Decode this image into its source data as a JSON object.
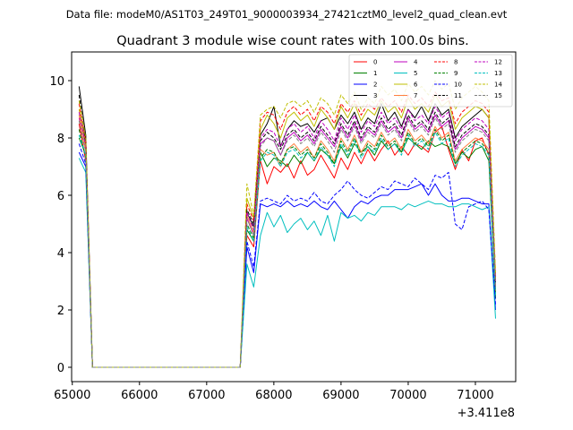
{
  "header_text": "Data file: modeM0/AS1T03_249T01_9000003934_27421cztM0_level2_quad_clean.evt",
  "chart_data": {
    "type": "line",
    "title": "Quadrant 3 module wise count rates with 100.0s bins.",
    "xlabel": "",
    "ylabel": "",
    "x_offset_text": "+3.411e8",
    "xlim": [
      64990,
      71600
    ],
    "ylim": [
      -0.5,
      11
    ],
    "x_ticks": [
      65000,
      66000,
      67000,
      68000,
      69000,
      70000,
      71000
    ],
    "y_ticks": [
      0,
      2,
      4,
      6,
      8,
      10
    ],
    "legend_position": "top-right",
    "x": [
      65100,
      65200,
      65300,
      65400,
      65500,
      65600,
      65700,
      65800,
      65900,
      66000,
      66100,
      66200,
      66300,
      66400,
      66500,
      66600,
      66700,
      66800,
      66900,
      67000,
      67100,
      67200,
      67300,
      67400,
      67500,
      67600,
      67700,
      67800,
      67900,
      68000,
      68100,
      68200,
      68300,
      68400,
      68500,
      68600,
      68700,
      68800,
      68900,
      69000,
      69100,
      69200,
      69300,
      69400,
      69500,
      69600,
      69700,
      69800,
      69900,
      70000,
      70100,
      70200,
      70300,
      70400,
      70500,
      70600,
      70700,
      70800,
      70900,
      71000,
      71100,
      71200,
      71300
    ],
    "series": [
      {
        "name": "0",
        "color": "#ff0000",
        "dash": false,
        "values": [
          8.5,
          7.2,
          0,
          0,
          0,
          0,
          0,
          0,
          0,
          0,
          0,
          0,
          0,
          0,
          0,
          0,
          0,
          0,
          0,
          0,
          0,
          0,
          0,
          0,
          0,
          4.6,
          4.2,
          7.2,
          6.4,
          7.0,
          6.8,
          7.1,
          6.6,
          7.2,
          6.7,
          6.9,
          7.4,
          7.0,
          6.6,
          7.3,
          6.9,
          7.5,
          7.1,
          7.6,
          7.2,
          7.6,
          7.9,
          7.4,
          7.7,
          7.4,
          7.8,
          7.7,
          7.5,
          8.2,
          8.4,
          7.6,
          6.9,
          7.6,
          7.2,
          7.9,
          8.0,
          7.4,
          2.5
        ]
      },
      {
        "name": "1",
        "color": "#008000",
        "dash": false,
        "values": [
          8.0,
          7.4,
          0,
          0,
          0,
          0,
          0,
          0,
          0,
          0,
          0,
          0,
          0,
          0,
          0,
          0,
          0,
          0,
          0,
          0,
          0,
          0,
          0,
          0,
          0,
          4.8,
          4.4,
          7.5,
          7.0,
          7.3,
          7.2,
          7.0,
          7.4,
          7.1,
          7.5,
          7.2,
          7.6,
          7.4,
          7.1,
          7.7,
          7.3,
          7.8,
          7.5,
          7.7,
          7.4,
          7.9,
          7.6,
          7.8,
          7.5,
          8.0,
          7.8,
          7.6,
          7.9,
          7.7,
          7.8,
          7.7,
          7.1,
          7.5,
          7.3,
          7.6,
          7.7,
          7.2,
          2.4
        ]
      },
      {
        "name": "2",
        "color": "#0000ff",
        "dash": false,
        "values": [
          7.5,
          7.0,
          0,
          0,
          0,
          0,
          0,
          0,
          0,
          0,
          0,
          0,
          0,
          0,
          0,
          0,
          0,
          0,
          0,
          0,
          0,
          0,
          0,
          0,
          0,
          4.2,
          3.3,
          5.7,
          5.6,
          5.7,
          5.6,
          5.8,
          5.6,
          5.7,
          5.6,
          5.8,
          5.6,
          5.5,
          5.8,
          5.5,
          5.2,
          5.6,
          5.8,
          5.7,
          5.9,
          6.0,
          6.0,
          6.2,
          6.2,
          6.2,
          6.3,
          6.4,
          6.0,
          6.4,
          6.0,
          5.8,
          5.8,
          5.9,
          5.9,
          5.8,
          5.7,
          5.7,
          2.0
        ]
      },
      {
        "name": "3",
        "color": "#000000",
        "dash": false,
        "values": [
          9.8,
          8.1,
          0,
          0,
          0,
          0,
          0,
          0,
          0,
          0,
          0,
          0,
          0,
          0,
          0,
          0,
          0,
          0,
          0,
          0,
          0,
          0,
          0,
          0,
          0,
          5.4,
          4.9,
          8.1,
          8.5,
          9.1,
          7.7,
          8.3,
          8.6,
          8.4,
          8.5,
          8.2,
          8.6,
          8.7,
          8.3,
          8.8,
          8.5,
          8.9,
          8.3,
          8.7,
          8.5,
          9.2,
          8.6,
          8.9,
          8.4,
          9.0,
          8.7,
          9.1,
          8.6,
          9.2,
          8.8,
          9.0,
          8.0,
          8.4,
          8.6,
          8.8,
          9.0,
          8.7,
          3.0
        ]
      },
      {
        "name": "4",
        "color": "#bf00bf",
        "dash": false,
        "values": [
          8.7,
          7.6,
          0,
          0,
          0,
          0,
          0,
          0,
          0,
          0,
          0,
          0,
          0,
          0,
          0,
          0,
          0,
          0,
          0,
          0,
          0,
          0,
          0,
          0,
          0,
          5.2,
          4.6,
          7.8,
          8.0,
          7.9,
          7.4,
          8.0,
          8.2,
          7.9,
          8.1,
          7.8,
          8.3,
          8.0,
          7.7,
          8.4,
          8.0,
          8.5,
          7.9,
          8.3,
          8.1,
          8.6,
          8.2,
          8.4,
          8.0,
          8.7,
          8.3,
          8.5,
          8.2,
          8.8,
          8.4,
          8.6,
          7.6,
          8.0,
          8.2,
          8.4,
          8.3,
          8.0,
          2.8
        ]
      },
      {
        "name": "5",
        "color": "#00bfbf",
        "dash": false,
        "values": [
          7.3,
          6.8,
          0,
          0,
          0,
          0,
          0,
          0,
          0,
          0,
          0,
          0,
          0,
          0,
          0,
          0,
          0,
          0,
          0,
          0,
          0,
          0,
          0,
          0,
          0,
          3.6,
          2.8,
          4.6,
          5.4,
          4.9,
          5.3,
          4.7,
          5.0,
          5.2,
          4.8,
          5.1,
          4.6,
          5.3,
          4.4,
          5.4,
          5.2,
          5.3,
          5.1,
          5.4,
          5.3,
          5.6,
          5.6,
          5.6,
          5.5,
          5.7,
          5.6,
          5.7,
          5.8,
          5.7,
          5.7,
          5.6,
          5.6,
          5.7,
          5.7,
          5.6,
          5.5,
          5.6,
          1.7
        ]
      },
      {
        "name": "6",
        "color": "#bfbf00",
        "dash": false,
        "values": [
          9.0,
          7.7,
          0,
          0,
          0,
          0,
          0,
          0,
          0,
          0,
          0,
          0,
          0,
          0,
          0,
          0,
          0,
          0,
          0,
          0,
          0,
          0,
          0,
          0,
          0,
          5.9,
          5.2,
          8.3,
          8.8,
          8.5,
          8.0,
          8.7,
          8.9,
          8.6,
          8.8,
          8.4,
          9.0,
          8.7,
          8.3,
          9.1,
          8.7,
          9.2,
          8.6,
          9.0,
          8.8,
          9.3,
          8.9,
          9.1,
          8.7,
          9.4,
          9.0,
          9.2,
          8.9,
          9.5,
          9.1,
          9.3,
          8.3,
          8.7,
          8.9,
          9.1,
          9.0,
          8.7,
          3.1
        ]
      },
      {
        "name": "7",
        "color": "#ff8040",
        "dash": false,
        "values": [
          8.8,
          7.5,
          0,
          0,
          0,
          0,
          0,
          0,
          0,
          0,
          0,
          0,
          0,
          0,
          0,
          0,
          0,
          0,
          0,
          0,
          0,
          0,
          0,
          0,
          0,
          5.3,
          4.7,
          7.6,
          7.4,
          7.5,
          7.0,
          7.6,
          7.8,
          7.5,
          7.7,
          7.3,
          7.9,
          7.6,
          7.2,
          8.0,
          7.6,
          8.1,
          7.5,
          7.9,
          7.7,
          8.2,
          7.8,
          8.0,
          7.6,
          8.3,
          7.9,
          8.1,
          7.8,
          8.4,
          8.0,
          8.2,
          7.2,
          7.6,
          7.8,
          8.0,
          7.9,
          7.6,
          2.7
        ]
      },
      {
        "name": "8",
        "color": "#ff0000",
        "dash": true,
        "values": [
          9.2,
          7.9,
          0,
          0,
          0,
          0,
          0,
          0,
          0,
          0,
          0,
          0,
          0,
          0,
          0,
          0,
          0,
          0,
          0,
          0,
          0,
          0,
          0,
          0,
          0,
          5.7,
          5.1,
          8.6,
          8.9,
          8.8,
          8.3,
          8.9,
          9.1,
          8.8,
          9.0,
          8.6,
          9.1,
          8.9,
          8.5,
          9.2,
          8.9,
          9.3,
          8.8,
          9.2,
          9.0,
          9.4,
          9.1,
          9.3,
          8.9,
          9.5,
          9.2,
          9.4,
          9.1,
          9.6,
          9.3,
          9.4,
          8.5,
          8.9,
          9.1,
          9.3,
          9.2,
          8.9,
          3.2
        ]
      },
      {
        "name": "9",
        "color": "#008000",
        "dash": true,
        "values": [
          8.3,
          7.3,
          0,
          0,
          0,
          0,
          0,
          0,
          0,
          0,
          0,
          0,
          0,
          0,
          0,
          0,
          0,
          0,
          0,
          0,
          0,
          0,
          0,
          0,
          0,
          5.0,
          4.5,
          7.3,
          7.6,
          7.5,
          7.1,
          7.6,
          7.7,
          7.4,
          7.6,
          7.3,
          7.8,
          7.5,
          7.1,
          7.9,
          7.5,
          8.0,
          7.4,
          7.8,
          7.6,
          8.1,
          7.7,
          7.9,
          7.5,
          8.2,
          7.8,
          8.0,
          7.7,
          8.3,
          7.9,
          8.1,
          7.1,
          7.5,
          7.7,
          7.9,
          7.8,
          7.5,
          2.6
        ]
      },
      {
        "name": "10",
        "color": "#0000ff",
        "dash": true,
        "values": [
          7.8,
          7.1,
          0,
          0,
          0,
          0,
          0,
          0,
          0,
          0,
          0,
          0,
          0,
          0,
          0,
          0,
          0,
          0,
          0,
          0,
          0,
          0,
          0,
          0,
          0,
          4.4,
          3.5,
          5.8,
          5.9,
          5.8,
          5.7,
          6.0,
          5.8,
          5.9,
          5.8,
          6.1,
          5.8,
          5.7,
          6.0,
          6.2,
          6.5,
          6.2,
          6.0,
          5.9,
          6.1,
          6.3,
          6.2,
          6.5,
          6.4,
          6.3,
          6.6,
          6.4,
          6.2,
          6.7,
          6.6,
          6.8,
          5.0,
          4.8,
          5.6,
          5.7,
          5.8,
          5.5,
          2.2
        ]
      },
      {
        "name": "11",
        "color": "#000000",
        "dash": true,
        "values": [
          9.5,
          7.8,
          0,
          0,
          0,
          0,
          0,
          0,
          0,
          0,
          0,
          0,
          0,
          0,
          0,
          0,
          0,
          0,
          0,
          0,
          0,
          0,
          0,
          0,
          0,
          5.5,
          5.0,
          7.9,
          8.2,
          8.0,
          7.6,
          8.1,
          8.3,
          8.0,
          8.2,
          7.9,
          8.4,
          8.1,
          7.8,
          8.5,
          8.1,
          8.6,
          8.0,
          8.4,
          8.2,
          8.7,
          8.3,
          8.5,
          8.1,
          8.8,
          8.4,
          8.6,
          8.3,
          8.9,
          8.5,
          8.7,
          7.7,
          8.1,
          8.3,
          8.5,
          8.4,
          8.1,
          2.9
        ]
      },
      {
        "name": "12",
        "color": "#bf00bf",
        "dash": true,
        "values": [
          8.9,
          7.7,
          0,
          0,
          0,
          0,
          0,
          0,
          0,
          0,
          0,
          0,
          0,
          0,
          0,
          0,
          0,
          0,
          0,
          0,
          0,
          0,
          0,
          0,
          0,
          5.4,
          4.8,
          8.0,
          8.3,
          8.2,
          7.7,
          8.3,
          8.5,
          8.2,
          8.4,
          8.0,
          8.6,
          8.3,
          7.9,
          8.7,
          8.3,
          8.8,
          8.2,
          8.6,
          8.4,
          8.9,
          8.5,
          8.7,
          8.3,
          9.0,
          8.6,
          8.8,
          8.5,
          9.1,
          8.7,
          8.9,
          7.9,
          8.3,
          8.5,
          8.7,
          8.6,
          8.3,
          3.0
        ]
      },
      {
        "name": "13",
        "color": "#00bfbf",
        "dash": true,
        "values": [
          8.1,
          7.4,
          0,
          0,
          0,
          0,
          0,
          0,
          0,
          0,
          0,
          0,
          0,
          0,
          0,
          0,
          0,
          0,
          0,
          0,
          0,
          0,
          0,
          0,
          0,
          4.9,
          4.4,
          7.2,
          7.5,
          7.4,
          7.0,
          7.5,
          7.6,
          7.3,
          7.5,
          7.2,
          7.7,
          7.4,
          7.0,
          7.8,
          7.4,
          7.9,
          7.3,
          7.7,
          7.5,
          8.0,
          7.6,
          7.8,
          7.4,
          8.1,
          7.7,
          7.9,
          7.6,
          8.2,
          7.8,
          8.0,
          7.0,
          7.4,
          7.6,
          7.8,
          7.7,
          7.4,
          2.5
        ]
      },
      {
        "name": "14",
        "color": "#bfbf00",
        "dash": true,
        "values": [
          9.3,
          8.0,
          0,
          0,
          0,
          0,
          0,
          0,
          0,
          0,
          0,
          0,
          0,
          0,
          0,
          0,
          0,
          0,
          0,
          0,
          0,
          0,
          0,
          0,
          0,
          6.4,
          5.3,
          8.8,
          9.0,
          9.1,
          8.7,
          9.2,
          9.3,
          9.1,
          9.3,
          8.9,
          9.4,
          9.2,
          8.8,
          9.5,
          9.2,
          9.6,
          9.0,
          9.4,
          9.2,
          9.8,
          9.5,
          9.7,
          9.3,
          9.9,
          9.6,
          9.8,
          9.5,
          10.0,
          9.7,
          9.9,
          9.0,
          9.4,
          9.6,
          9.8,
          9.6,
          9.3,
          3.3
        ]
      },
      {
        "name": "15",
        "color": "#808080",
        "dash": true,
        "values": [
          8.6,
          7.5,
          0,
          0,
          0,
          0,
          0,
          0,
          0,
          0,
          0,
          0,
          0,
          0,
          0,
          0,
          0,
          0,
          0,
          0,
          0,
          0,
          0,
          0,
          0,
          5.2,
          4.6,
          7.7,
          8.0,
          7.9,
          7.4,
          7.9,
          8.1,
          7.8,
          8.0,
          7.7,
          8.2,
          7.9,
          7.5,
          8.3,
          7.9,
          8.4,
          7.8,
          8.2,
          8.0,
          8.5,
          8.1,
          8.3,
          7.9,
          8.6,
          8.2,
          8.4,
          8.1,
          8.7,
          8.3,
          8.5,
          7.5,
          7.9,
          8.1,
          8.3,
          8.2,
          7.9,
          2.8
        ]
      }
    ]
  }
}
